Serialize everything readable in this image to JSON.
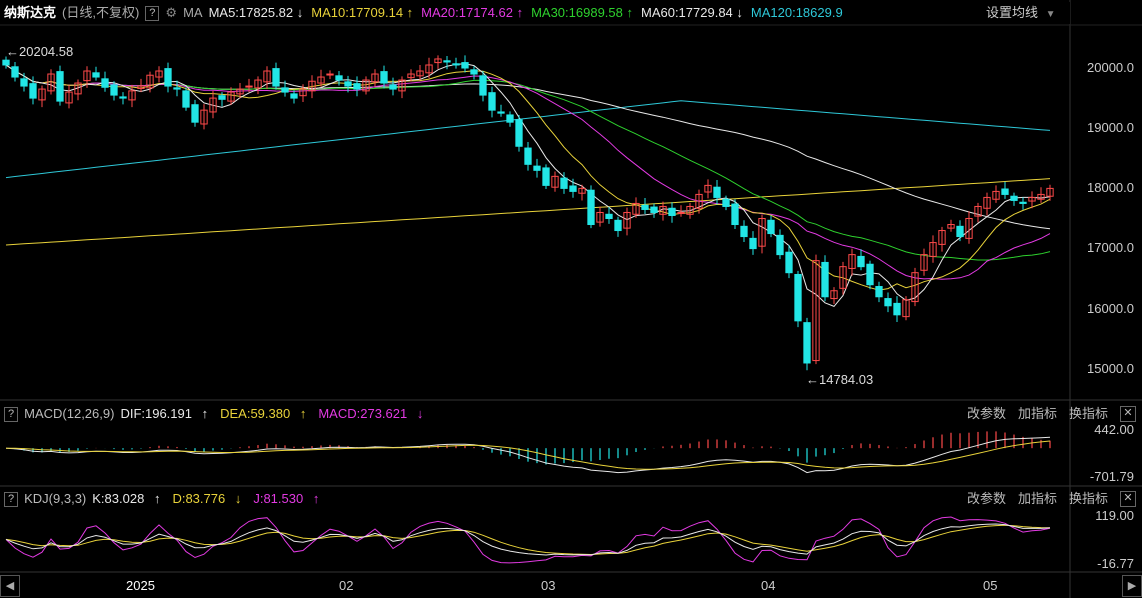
{
  "main_header": {
    "title": "纳斯达克",
    "mode": "(日线,不复权)",
    "help": "?",
    "ma_label": "MA",
    "settings": "设置均线",
    "ma_values": [
      {
        "text": "MA5:17825.82",
        "arrow": "↓",
        "color": "#e8e8e8"
      },
      {
        "text": "MA10:17709.14",
        "arrow": "↑",
        "color": "#e8d23a"
      },
      {
        "text": "MA20:17174.62",
        "arrow": "↑",
        "color": "#e23ae2"
      },
      {
        "text": "MA30:16989.58",
        "arrow": "↑",
        "color": "#2ed12e"
      },
      {
        "text": "MA60:17729.84",
        "arrow": "↓",
        "color": "#e8e8e8"
      },
      {
        "text": "MA120:18629.9",
        "arrow": "",
        "color": "#2ec8d8"
      }
    ]
  },
  "macd_header": {
    "name": "MACD(12,26,9)",
    "dif": "DIF:196.191",
    "dif_arrow": "↑",
    "dea": "DEA:59.380",
    "dea_arrow": "↑",
    "macd": "MACD:273.621",
    "macd_arrow": "↓",
    "btn1": "改参数",
    "btn2": "加指标",
    "btn3": "换指标",
    "close": "✕"
  },
  "kdj_header": {
    "name": "KDJ(9,3,3)",
    "k": "K:83.028",
    "k_arrow": "↑",
    "d": "D:83.776",
    "d_arrow": "↓",
    "j": "J:81.530",
    "j_arrow": "↑",
    "btn1": "改参数",
    "btn2": "加指标",
    "btn3": "换指标",
    "close": "✕"
  },
  "annotations": {
    "high": "20204.58",
    "low": "14784.03"
  },
  "y_axis_main": [
    "20000.0",
    "19000.0",
    "18000.0",
    "17000.0",
    "16000.0",
    "15000.0"
  ],
  "y_axis_macd": [
    "442.00",
    "-701.79"
  ],
  "y_axis_kdj": [
    "119.00",
    "-16.77"
  ],
  "x_axis": [
    "2025",
    "02",
    "03",
    "04",
    "05"
  ],
  "colors": {
    "up": "#ff4a4a",
    "down": "#22e6e6",
    "ma5": "#e8e8e8",
    "ma10": "#e8d23a",
    "ma20": "#e23ae2",
    "ma30": "#2ed12e",
    "ma60": "#e8e8e8",
    "ma120": "#2ec8d8",
    "ma250": "#e8d23a"
  },
  "chart_data": {
    "type": "candlestick",
    "title": "纳斯达克 (日线,不复权)",
    "x": [
      "2025-01",
      "2025-02",
      "2025-03",
      "2025-04",
      "2025-05"
    ],
    "ylim": [
      14600,
      20500
    ],
    "closes": [
      20050,
      19850,
      19700,
      19500,
      19650,
      19900,
      19450,
      19600,
      19750,
      19950,
      19850,
      19680,
      19550,
      19500,
      19620,
      19700,
      19880,
      19950,
      19700,
      19650,
      19350,
      19100,
      19300,
      19500,
      19480,
      19600,
      19650,
      19700,
      19800,
      19950,
      19700,
      19600,
      19500,
      19650,
      19780,
      19850,
      19900,
      19800,
      19700,
      19650,
      19800,
      19900,
      19750,
      19650,
      19800,
      19900,
      19950,
      20050,
      20150,
      20100,
      20050,
      20000,
      19900,
      19550,
      19300,
      19250,
      19100,
      18700,
      18400,
      18300,
      18050,
      18200,
      18000,
      17950,
      18000,
      17400,
      17600,
      17500,
      17300,
      17600,
      17750,
      17650,
      17600,
      17700,
      17550,
      17600,
      17700,
      17900,
      18050,
      17850,
      17700,
      17400,
      17200,
      17000,
      17500,
      17250,
      16900,
      16600,
      15800,
      15100,
      16800,
      16200,
      16300,
      16700,
      16900,
      16700,
      16400,
      16200,
      16050,
      15900,
      16150,
      16600,
      16900,
      17100,
      17300,
      17400,
      17200,
      17500,
      17700,
      17850,
      17950,
      17900,
      17800,
      17750,
      17850,
      17900,
      18000
    ],
    "ma_lines": {
      "MA5": 17825.82,
      "MA10": 17709.14,
      "MA20": 17174.62,
      "MA30": 16989.58,
      "MA60": 17729.84,
      "MA120": 18629.9
    },
    "high_mark": 20204.58,
    "low_mark": 14784.03,
    "macd": {
      "DIF": 196.191,
      "DEA": 59.38,
      "MACD": 273.621,
      "ylim": [
        -701.79,
        442.0
      ]
    },
    "kdj": {
      "K": 83.028,
      "D": 83.776,
      "J": 81.53,
      "ylim": [
        -16.77,
        119.0
      ]
    }
  }
}
